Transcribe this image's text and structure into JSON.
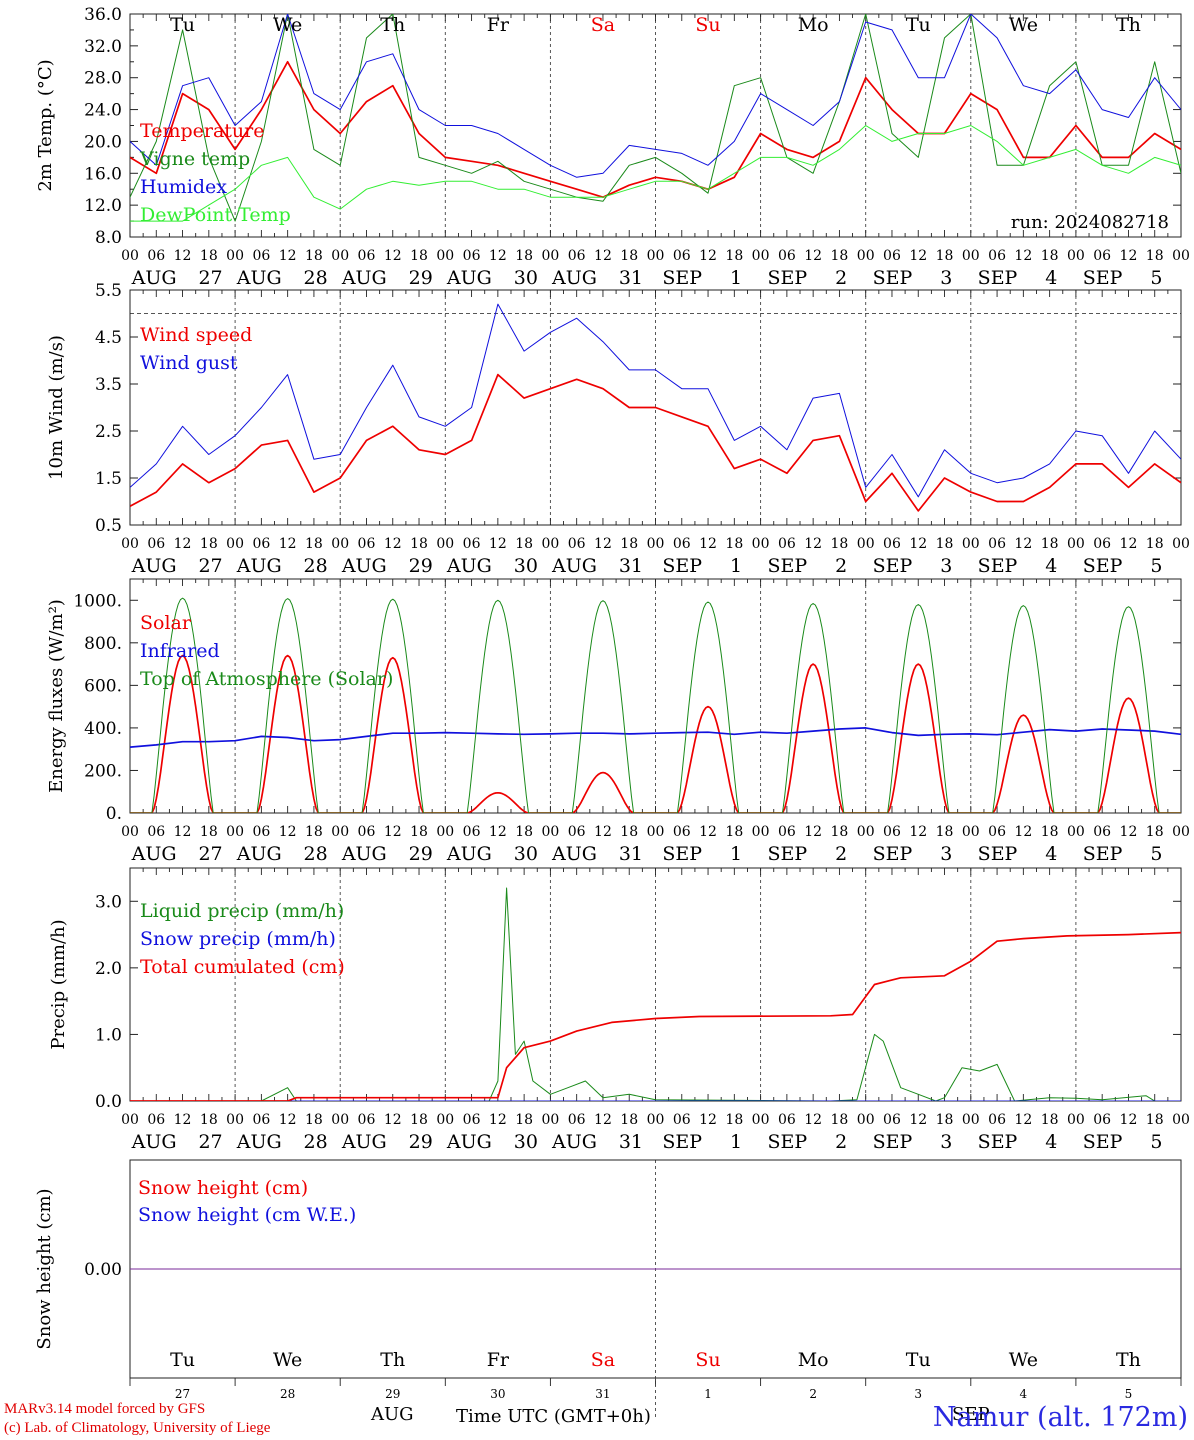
{
  "colors": {
    "red": "#ee0000",
    "green": "#1a8a1a",
    "blue": "#1010dd",
    "light_green": "#33ee33",
    "purple": "#7a2a9a",
    "weekend": "#ee0000",
    "brand": "#2a2ae0"
  },
  "x_axis": {
    "days": [
      {
        "month": "AUG",
        "date": "27",
        "dow": "Tu",
        "weekend": false
      },
      {
        "month": "AUG",
        "date": "28",
        "dow": "We",
        "weekend": false
      },
      {
        "month": "AUG",
        "date": "29",
        "dow": "Th",
        "weekend": false
      },
      {
        "month": "AUG",
        "date": "30",
        "dow": "Fr",
        "weekend": false
      },
      {
        "month": "AUG",
        "date": "31",
        "dow": "Sa",
        "weekend": true
      },
      {
        "month": "SEP",
        "date": "1",
        "dow": "Su",
        "weekend": true
      },
      {
        "month": "SEP",
        "date": "2",
        "dow": "Mo",
        "weekend": false
      },
      {
        "month": "SEP",
        "date": "3",
        "dow": "Tu",
        "weekend": false
      },
      {
        "month": "SEP",
        "date": "4",
        "dow": "We",
        "weekend": false
      },
      {
        "month": "SEP",
        "date": "5",
        "dow": "Th",
        "weekend": false
      }
    ],
    "hour_ticks": [
      "00",
      "06",
      "12",
      "18"
    ],
    "final_tick": "00"
  },
  "chart_data": [
    {
      "type": "line",
      "ylabel": "2m Temp. (°C)",
      "ylim": [
        8,
        36
      ],
      "yticks": [
        "8.0",
        "12.0",
        "16.0",
        "20.0",
        "24.0",
        "28.0",
        "32.0",
        "36.0"
      ],
      "annotation": "run: 2024082718",
      "x_hours": [
        0,
        6,
        12,
        18,
        24,
        30,
        36,
        42,
        48,
        54,
        60,
        66,
        72,
        78,
        84,
        90,
        96,
        102,
        108,
        114,
        120,
        126,
        132,
        138,
        144,
        150,
        156,
        162,
        168,
        174,
        180,
        186,
        192,
        198,
        204,
        210,
        216,
        222,
        228,
        234,
        240
      ],
      "series": [
        {
          "name": "Temperature",
          "color": "red",
          "width": 1.7,
          "values": [
            18,
            16,
            26,
            24,
            19,
            24,
            30,
            24,
            21,
            25,
            27,
            21,
            18,
            17.5,
            17,
            16,
            15,
            14,
            13,
            14.5,
            15.5,
            15,
            14,
            15.5,
            21,
            19,
            18,
            20,
            28,
            24,
            21,
            21,
            26,
            24,
            18,
            18,
            22,
            18,
            18,
            21,
            19
          ]
        },
        {
          "name": "Vigne temp",
          "color": "green",
          "width": 1.0,
          "values": [
            13,
            20,
            34,
            18,
            10,
            20,
            36,
            19,
            17,
            33,
            36,
            18,
            17,
            16,
            17.5,
            15,
            14,
            13,
            12.5,
            17,
            18,
            16,
            13.5,
            27,
            28,
            18,
            16,
            25,
            36,
            21,
            18,
            33,
            36,
            17,
            17,
            27,
            30,
            17,
            17,
            30,
            16
          ]
        },
        {
          "name": "Humidex",
          "color": "blue",
          "width": 1.0,
          "values": [
            20,
            17,
            27,
            28,
            22,
            25,
            36,
            26,
            24,
            30,
            31,
            24,
            22,
            22,
            21,
            19,
            17,
            15.5,
            16,
            19.5,
            19,
            18.5,
            17,
            20,
            26,
            24,
            22,
            25,
            35,
            34,
            28,
            28,
            36,
            33,
            27,
            26,
            29,
            24,
            23,
            28,
            24
          ]
        },
        {
          "name": "DewPoint Temp",
          "color": "light_green",
          "width": 1.0,
          "values": [
            10,
            10,
            10,
            12,
            14,
            17,
            18,
            13,
            11.5,
            14,
            15,
            14.5,
            15,
            15,
            14,
            14,
            13,
            13,
            13,
            14,
            15,
            15,
            14,
            16,
            18,
            18,
            17,
            19,
            22,
            20,
            21,
            21,
            22,
            20,
            17,
            18,
            19,
            17,
            16,
            18,
            17
          ]
        }
      ]
    },
    {
      "type": "line",
      "ylabel": "10m Wind (m/s)",
      "ylim": [
        0.5,
        5.5
      ],
      "yticks": [
        "0.5",
        "1.5",
        "2.5",
        "3.5",
        "4.5",
        "5.5"
      ],
      "reference_line": 5.0,
      "x_hours": [
        0,
        6,
        12,
        18,
        24,
        30,
        36,
        42,
        48,
        54,
        60,
        66,
        72,
        78,
        84,
        90,
        96,
        102,
        108,
        114,
        120,
        126,
        132,
        138,
        144,
        150,
        156,
        162,
        168,
        174,
        180,
        186,
        192,
        198,
        204,
        210,
        216,
        222,
        228,
        234,
        240
      ],
      "series": [
        {
          "name": "Wind speed",
          "color": "red",
          "width": 1.7,
          "values": [
            0.9,
            1.2,
            1.8,
            1.4,
            1.7,
            2.2,
            2.3,
            1.2,
            1.5,
            2.3,
            2.6,
            2.1,
            2.0,
            2.3,
            3.7,
            3.2,
            3.4,
            3.6,
            3.4,
            3.0,
            3.0,
            2.8,
            2.6,
            1.7,
            1.9,
            1.6,
            2.3,
            2.4,
            1.0,
            1.6,
            0.8,
            1.5,
            1.2,
            1.0,
            1.0,
            1.3,
            1.8,
            1.8,
            1.3,
            1.8,
            1.4
          ]
        },
        {
          "name": "Wind gust",
          "color": "blue",
          "width": 1.0,
          "values": [
            1.3,
            1.8,
            2.6,
            2.0,
            2.4,
            3.0,
            3.7,
            1.9,
            2.0,
            3.0,
            3.9,
            2.8,
            2.6,
            3.0,
            5.2,
            4.2,
            4.6,
            4.9,
            4.4,
            3.8,
            3.8,
            3.4,
            3.4,
            2.3,
            2.6,
            2.1,
            3.2,
            3.3,
            1.3,
            2.0,
            1.1,
            2.1,
            1.6,
            1.4,
            1.5,
            1.8,
            2.5,
            2.4,
            1.6,
            2.5,
            1.9
          ]
        }
      ]
    },
    {
      "type": "line",
      "ylabel": "Energy fluxes (W/m²)",
      "ylim": [
        0,
        1100
      ],
      "yticks": [
        "0.",
        "200.",
        "400.",
        "600.",
        "800.",
        "1000."
      ],
      "series": [
        {
          "name": "Solar",
          "color": "red",
          "width": 1.7,
          "day_peaks": [
            740,
            740,
            730,
            95,
            190,
            500,
            700,
            700,
            460,
            540
          ]
        },
        {
          "name": "Infrared",
          "color": "blue",
          "width": 1.7,
          "values": [
            310,
            320,
            335,
            335,
            340,
            360,
            355,
            340,
            345,
            360,
            375,
            375,
            378,
            375,
            372,
            370,
            372,
            375,
            375,
            372,
            375,
            378,
            380,
            370,
            380,
            375,
            385,
            395,
            400,
            378,
            365,
            370,
            372,
            368,
            380,
            392,
            385,
            395,
            390,
            385,
            370
          ]
        },
        {
          "name": "Top of Atmosphere (Solar)",
          "color": "green",
          "width": 1.0,
          "day_peaks": [
            1010,
            1008,
            1005,
            1000,
            998,
            992,
            985,
            980,
            975,
            970
          ]
        }
      ]
    },
    {
      "type": "line",
      "ylabel": "Precip (mm/h)",
      "ylim": [
        0,
        3.5
      ],
      "yticks": [
        "0.0",
        "1.0",
        "2.0",
        "3.0"
      ],
      "series": [
        {
          "name": "Liquid precip (mm/h)",
          "color": "green",
          "width": 1.0,
          "points": [
            [
              0,
              0
            ],
            [
              30,
              0
            ],
            [
              36,
              0.2
            ],
            [
              38,
              0
            ],
            [
              82,
              0
            ],
            [
              84,
              0.3
            ],
            [
              86,
              3.2
            ],
            [
              88,
              0.7
            ],
            [
              90,
              0.9
            ],
            [
              92,
              0.3
            ],
            [
              96,
              0.1
            ],
            [
              100,
              0.2
            ],
            [
              104,
              0.3
            ],
            [
              108,
              0.05
            ],
            [
              114,
              0.1
            ],
            [
              120,
              0.02
            ],
            [
              160,
              0
            ],
            [
              166,
              0.02
            ],
            [
              170,
              1.0
            ],
            [
              172,
              0.9
            ],
            [
              176,
              0.2
            ],
            [
              180,
              0.1
            ],
            [
              184,
              0
            ],
            [
              186,
              0.05
            ],
            [
              190,
              0.5
            ],
            [
              194,
              0.45
            ],
            [
              198,
              0.55
            ],
            [
              202,
              0
            ],
            [
              210,
              0.05
            ],
            [
              216,
              0.04
            ],
            [
              222,
              0.02
            ],
            [
              232,
              0.08
            ],
            [
              234,
              0
            ],
            [
              240,
              0
            ]
          ]
        },
        {
          "name": "Snow precip (mm/h)",
          "color": "blue",
          "width": 1.0,
          "points": [
            [
              0,
              0
            ],
            [
              240,
              0
            ]
          ]
        },
        {
          "name": "Total cumulated (cm)",
          "color": "red",
          "width": 1.7,
          "points": [
            [
              0,
              0
            ],
            [
              36,
              0
            ],
            [
              38,
              0.05
            ],
            [
              84,
              0.05
            ],
            [
              86,
              0.5
            ],
            [
              90,
              0.8
            ],
            [
              96,
              0.9
            ],
            [
              102,
              1.05
            ],
            [
              110,
              1.18
            ],
            [
              120,
              1.24
            ],
            [
              130,
              1.27
            ],
            [
              160,
              1.28
            ],
            [
              165,
              1.3
            ],
            [
              170,
              1.75
            ],
            [
              176,
              1.85
            ],
            [
              186,
              1.88
            ],
            [
              192,
              2.1
            ],
            [
              198,
              2.4
            ],
            [
              204,
              2.44
            ],
            [
              214,
              2.48
            ],
            [
              228,
              2.5
            ],
            [
              240,
              2.53
            ]
          ]
        }
      ]
    },
    {
      "type": "line",
      "ylabel": "Snow height (cm)",
      "ylim": [
        -1,
        1
      ],
      "yticks": [
        "0.00"
      ],
      "series": [
        {
          "name": "Snow height (cm)",
          "color": "red",
          "width": 1.0,
          "values": [
            0,
            0
          ]
        },
        {
          "name": "Snow height (cm W.E.)",
          "color": "blue",
          "width": 1.0,
          "values": [
            0,
            0
          ]
        }
      ]
    }
  ],
  "footer": {
    "model": "MARv3.14 model forced by GFS",
    "lab": "(c) Lab. of Climatology, University of Liege",
    "month_aug": "AUG",
    "month_sep": "SEP",
    "time_label": "Time UTC (GMT+0h)",
    "location": "Namur (alt. 172m)"
  }
}
